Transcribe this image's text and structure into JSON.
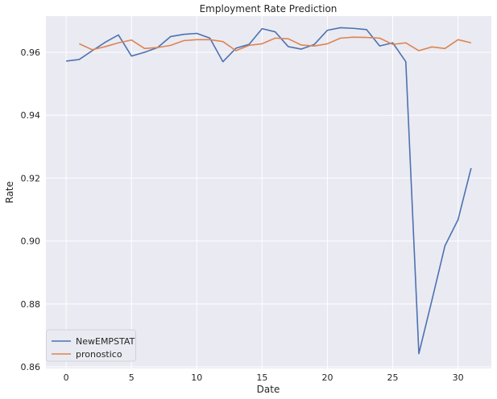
{
  "chart_data": {
    "type": "line",
    "title": "Employment Rate Prediction",
    "xlabel": "Date",
    "ylabel": "Rate",
    "xlim": [
      -1.55,
      32.55
    ],
    "ylim": [
      0.8595,
      0.9715
    ],
    "xticks": [
      0,
      5,
      10,
      15,
      20,
      25,
      30
    ],
    "yticks": [
      0.86,
      0.88,
      0.9,
      0.92,
      0.94,
      0.96
    ],
    "ytick_labels": [
      "0.86",
      "0.88",
      "0.90",
      "0.92",
      "0.94",
      "0.96"
    ],
    "grid": true,
    "legend_position": "lower-left",
    "background_color": "#eaeaf2",
    "grid_color": "#ffffff",
    "series": [
      {
        "name": "NewEMPSTAT",
        "color": "#4c72b0",
        "x": [
          0,
          1,
          2,
          3,
          4,
          5,
          6,
          7,
          8,
          9,
          10,
          11,
          12,
          13,
          14,
          15,
          16,
          17,
          18,
          19,
          20,
          21,
          22,
          23,
          24,
          25,
          26,
          27,
          28,
          29,
          30,
          31
        ],
        "values": [
          0.9572,
          0.9577,
          0.9605,
          0.9632,
          0.9655,
          0.9588,
          0.96,
          0.9615,
          0.965,
          0.9657,
          0.966,
          0.9645,
          0.957,
          0.9613,
          0.9625,
          0.9675,
          0.9665,
          0.9618,
          0.961,
          0.9625,
          0.967,
          0.9678,
          0.9676,
          0.9672,
          0.962,
          0.963,
          0.957,
          0.8642,
          0.8812,
          0.8985,
          0.9068,
          0.9232
        ]
      },
      {
        "name": "pronostico",
        "color": "#dd8452",
        "x": [
          1,
          2,
          3,
          4,
          5,
          6,
          7,
          8,
          9,
          10,
          11,
          12,
          13,
          14,
          15,
          16,
          17,
          18,
          19,
          20,
          21,
          22,
          23,
          24,
          25,
          26,
          27,
          28,
          29,
          30,
          31
        ],
        "values": [
          0.9627,
          0.9608,
          0.9618,
          0.963,
          0.9639,
          0.9612,
          0.9615,
          0.9622,
          0.9637,
          0.964,
          0.964,
          0.9634,
          0.9605,
          0.9622,
          0.9627,
          0.9645,
          0.9643,
          0.9623,
          0.962,
          0.9627,
          0.9645,
          0.9648,
          0.9647,
          0.9645,
          0.9625,
          0.963,
          0.9605,
          0.9617,
          0.9612,
          0.964,
          0.963
        ]
      }
    ]
  }
}
